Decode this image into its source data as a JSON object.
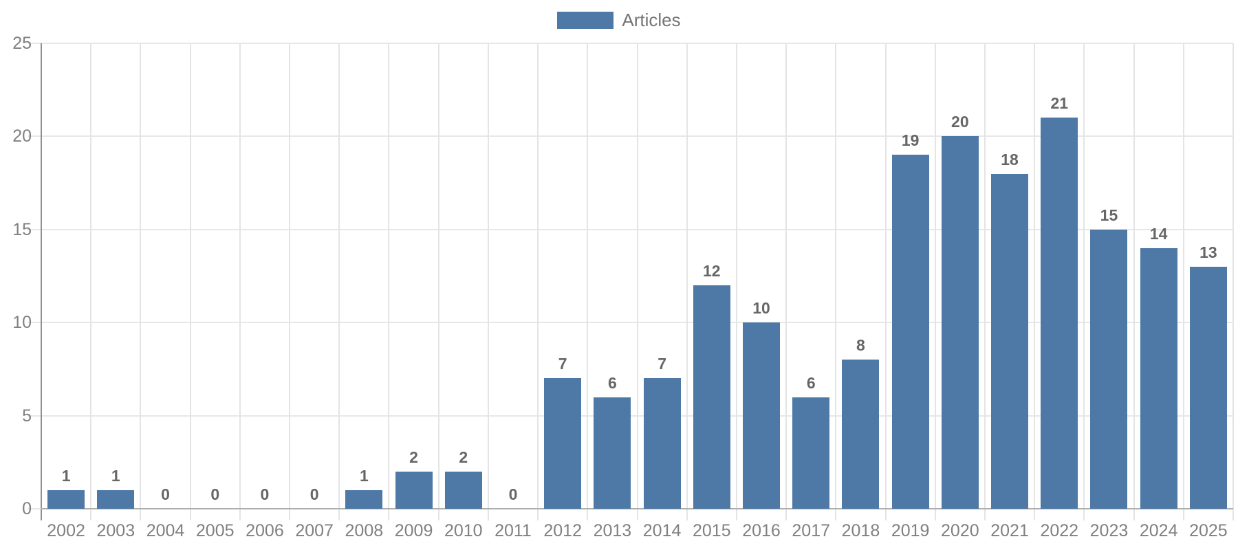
{
  "legend": {
    "label": "Articles",
    "swatch_color": "#4E79A7"
  },
  "chart_data": {
    "type": "bar",
    "title": "",
    "xlabel": "",
    "ylabel": "",
    "categories": [
      "2002",
      "2003",
      "2004",
      "2005",
      "2006",
      "2007",
      "2008",
      "2009",
      "2010",
      "2011",
      "2012",
      "2013",
      "2014",
      "2015",
      "2016",
      "2017",
      "2018",
      "2019",
      "2020",
      "2021",
      "2022",
      "2023",
      "2024",
      "2025"
    ],
    "series": [
      {
        "name": "Articles",
        "values": [
          1,
          1,
          0,
          0,
          0,
          0,
          1,
          2,
          2,
          0,
          7,
          6,
          7,
          12,
          10,
          6,
          8,
          19,
          20,
          18,
          21,
          15,
          14,
          13
        ]
      }
    ],
    "ylim": [
      0,
      25
    ],
    "yticks": [
      0,
      5,
      10,
      15,
      20,
      25
    ],
    "grid": true,
    "show_value_labels": true,
    "legend_position": "top-center",
    "bar_color": "#4E79A7",
    "grid_color": "#e7e7e7",
    "tick_label_color": "#808080",
    "value_label_color": "#666666"
  }
}
